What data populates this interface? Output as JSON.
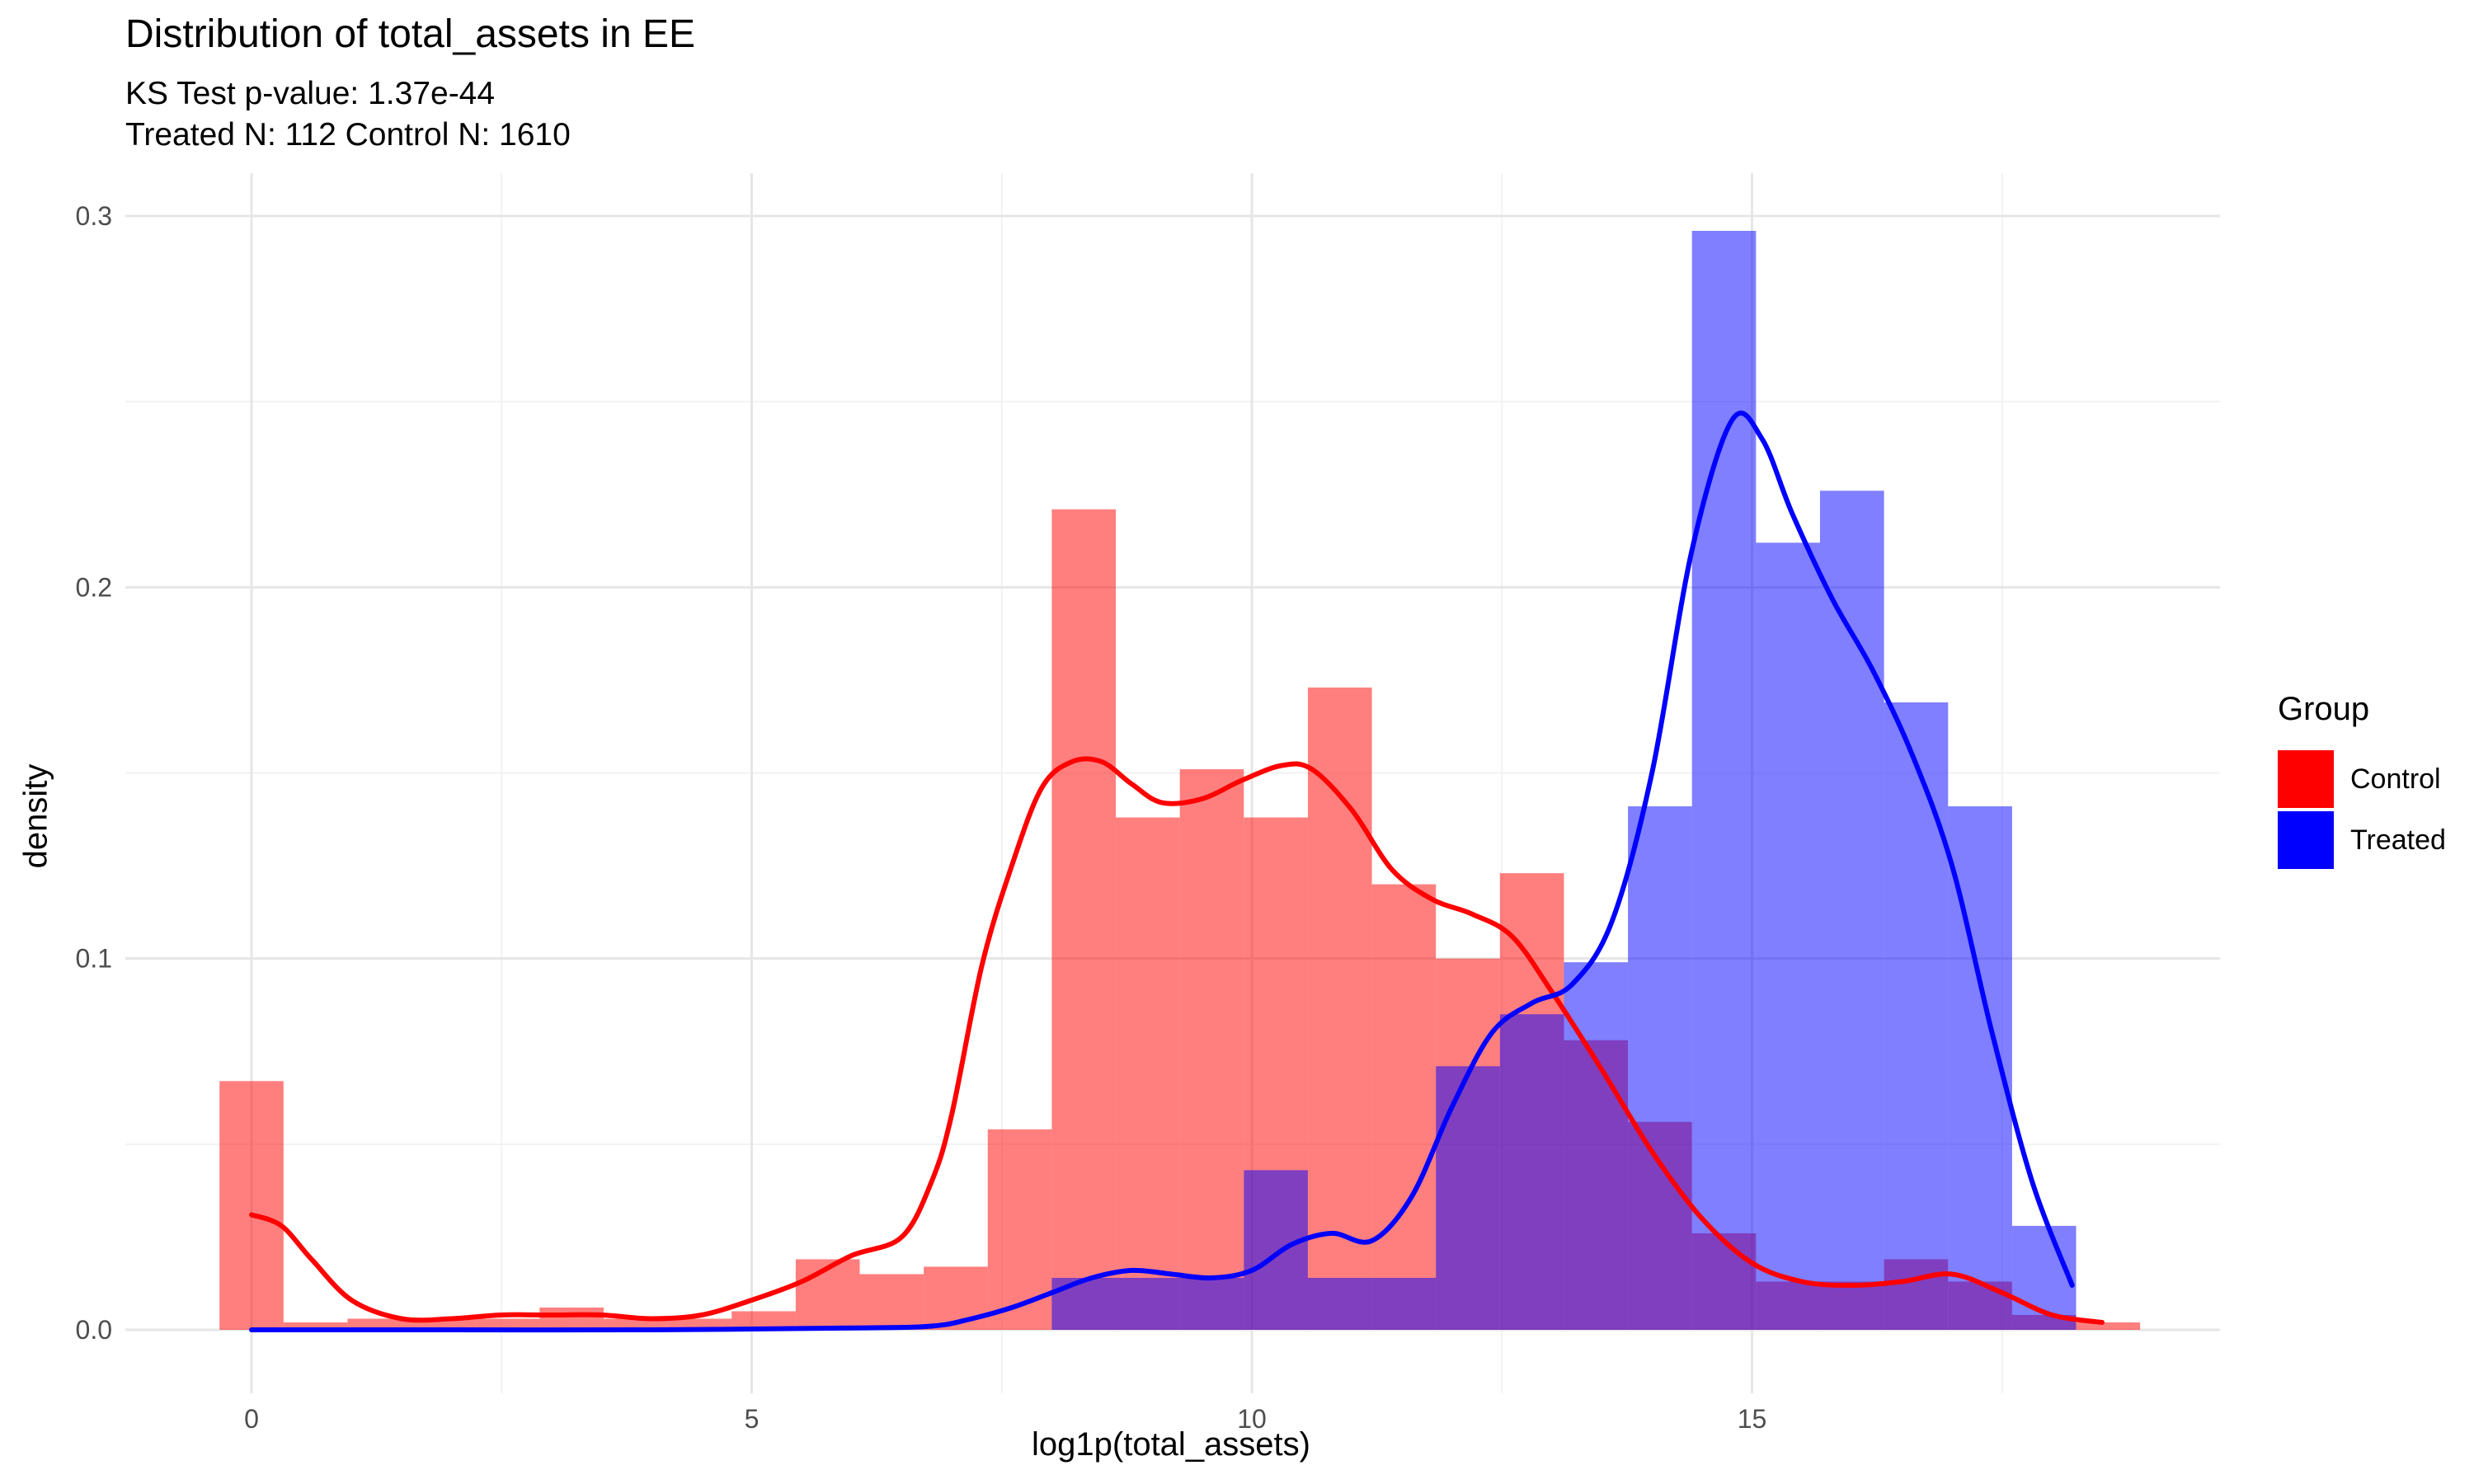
{
  "chart_data": {
    "type": "histogram-density",
    "title": "Distribution of total_assets in EE",
    "subtitle_lines": [
      "KS Test p-value: 1.37e-44",
      "Treated N: 112 Control N: 1610"
    ],
    "xlabel": "log1p(total_assets)",
    "ylabel": "density",
    "xlim": [
      -0.9,
      19.3
    ],
    "ylim": [
      -0.015,
      0.315
    ],
    "x_ticks": [
      0,
      5,
      10,
      15
    ],
    "x_tick_labels": [
      "0",
      "5",
      "10",
      "15"
    ],
    "y_ticks": [
      0.0,
      0.1,
      0.2,
      0.3
    ],
    "y_tick_labels": [
      "0.0",
      "0.1",
      "0.2",
      "0.3"
    ],
    "grid": true,
    "legend": {
      "title": "Group",
      "position": "right",
      "entries": [
        {
          "name": "Control",
          "color": "#ff0000"
        },
        {
          "name": "Treated",
          "color": "#0000ff"
        }
      ]
    },
    "bins": {
      "edges": [
        -0.32,
        0.32,
        0.96,
        1.6,
        2.24,
        2.88,
        3.52,
        4.16,
        4.8,
        5.44,
        6.08,
        6.72,
        7.36,
        8.0,
        8.64,
        9.28,
        9.92,
        10.56,
        11.2,
        11.84,
        12.48,
        13.12,
        13.76,
        14.4,
        15.04,
        15.68,
        16.32,
        16.96,
        17.6,
        18.24,
        18.88
      ]
    },
    "series": [
      {
        "name": "Control",
        "color": "#ff0000",
        "hist_values": [
          0.067,
          0.002,
          0.003,
          0.003,
          0.003,
          0.006,
          0.003,
          0.003,
          0.005,
          0.019,
          0.015,
          0.017,
          0.054,
          0.221,
          0.138,
          0.151,
          0.138,
          0.173,
          0.12,
          0.1,
          0.123,
          0.078,
          0.056,
          0.026,
          0.013,
          0.013,
          0.019,
          0.013,
          0.004,
          0.002
        ],
        "density_x": [
          0,
          0.3,
          0.6,
          1.0,
          1.5,
          2.0,
          2.5,
          3.0,
          3.5,
          4.0,
          4.5,
          5.0,
          5.5,
          6.0,
          6.5,
          6.8,
          7.0,
          7.3,
          7.6,
          7.9,
          8.2,
          8.5,
          8.8,
          9.1,
          9.5,
          9.9,
          10.3,
          10.6,
          11.0,
          11.4,
          11.8,
          12.2,
          12.6,
          13.0,
          13.5,
          14.0,
          14.5,
          15.0,
          15.5,
          16.0,
          16.5,
          17.0,
          17.5,
          18.0,
          18.5
        ],
        "density_y": [
          0.031,
          0.028,
          0.019,
          0.008,
          0.003,
          0.003,
          0.004,
          0.004,
          0.004,
          0.003,
          0.004,
          0.008,
          0.013,
          0.02,
          0.025,
          0.04,
          0.058,
          0.098,
          0.125,
          0.146,
          0.153,
          0.153,
          0.147,
          0.142,
          0.143,
          0.148,
          0.152,
          0.151,
          0.14,
          0.124,
          0.116,
          0.112,
          0.106,
          0.091,
          0.07,
          0.048,
          0.03,
          0.018,
          0.013,
          0.012,
          0.013,
          0.015,
          0.01,
          0.004,
          0.002
        ]
      },
      {
        "name": "Treated",
        "color": "#0000ff",
        "hist_values": [
          0,
          0,
          0,
          0,
          0,
          0,
          0,
          0,
          0,
          0,
          0,
          0,
          0,
          0.014,
          0.014,
          0.014,
          0.043,
          0.014,
          0.014,
          0.071,
          0.085,
          0.099,
          0.141,
          0.296,
          0.212,
          0.226,
          0.169,
          0.141,
          0.028,
          0
        ],
        "density_x": [
          0,
          2,
          4,
          6,
          6.8,
          7.2,
          7.6,
          8.0,
          8.4,
          8.8,
          9.2,
          9.6,
          10.0,
          10.4,
          10.8,
          11.2,
          11.6,
          12.0,
          12.4,
          12.8,
          13.2,
          13.6,
          14.0,
          14.4,
          14.8,
          15.1,
          15.4,
          15.8,
          16.2,
          16.6,
          17.0,
          17.4,
          17.8,
          18.2
        ],
        "density_y": [
          0,
          0,
          0,
          0.0005,
          0.001,
          0.003,
          0.006,
          0.01,
          0.014,
          0.016,
          0.015,
          0.014,
          0.016,
          0.023,
          0.026,
          0.024,
          0.036,
          0.06,
          0.08,
          0.088,
          0.093,
          0.11,
          0.15,
          0.21,
          0.245,
          0.24,
          0.22,
          0.197,
          0.178,
          0.155,
          0.125,
          0.08,
          0.04,
          0.012
        ]
      }
    ]
  }
}
